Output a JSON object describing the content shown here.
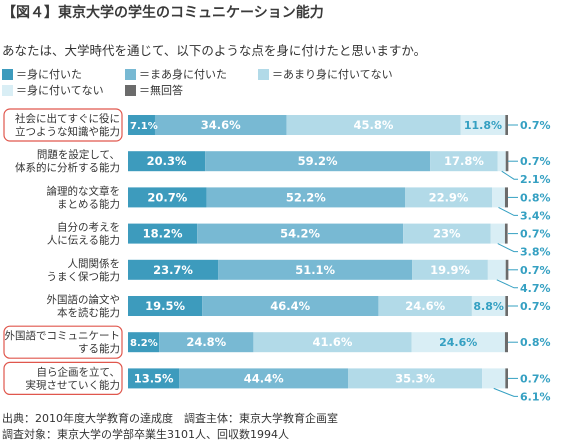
{
  "title": "【図４】東京大学の学生のコミュニケーション能力",
  "question": "あなたは、大学時代を通じて、以下のような点を身に付けたと思いますか。",
  "footer": {
    "line1": "出典：2010年度大学教育の達成度　調査主体：東京大学教育企画室",
    "line2": "調査対象：東京大学の学部卒業生3101人、回収数1994人"
  },
  "chart_data": {
    "type": "bar",
    "orientation": "horizontal",
    "stacked": true,
    "ylim": [
      0,
      100
    ],
    "legend_position": "top",
    "series": [
      {
        "name": "身に付いた",
        "color": "#3d9bbd",
        "label_color": "#ffffff"
      },
      {
        "name": "まあ身に付いた",
        "color": "#78b9d3",
        "label_color": "#ffffff"
      },
      {
        "name": "あまり身に付いてない",
        "color": "#b2dae8",
        "label_color": "#ffffff"
      },
      {
        "name": "身に付いてない",
        "color": "#d9eef5",
        "label_color": "#35a0c2"
      },
      {
        "name": "無回答",
        "color": "#6b6b6b",
        "label_color": "#35a0c2"
      }
    ],
    "categories": [
      {
        "lines": [
          "社会に出てすぐに役に",
          "立つような知識や能力"
        ],
        "highlight": true,
        "values": [
          7.1,
          34.6,
          45.8,
          11.8,
          0.7
        ],
        "labels": [
          "7.1%",
          "34.6%",
          "45.8%",
          "11.8%",
          "0.7%"
        ]
      },
      {
        "lines": [
          "問題を設定して、",
          "体系的に分析する能力"
        ],
        "highlight": false,
        "values": [
          20.3,
          59.2,
          17.8,
          2.1,
          0.7
        ],
        "labels": [
          "20.3%",
          "59.2%",
          "17.8%",
          "2.1%",
          "0.7%"
        ]
      },
      {
        "lines": [
          "論理的な文章を",
          "まとめる能力"
        ],
        "highlight": false,
        "values": [
          20.7,
          52.2,
          22.9,
          3.4,
          0.8
        ],
        "labels": [
          "20.7%",
          "52.2%",
          "22.9%",
          "3.4%",
          "0.8%"
        ]
      },
      {
        "lines": [
          "自分の考えを",
          "人に伝える能力"
        ],
        "highlight": false,
        "values": [
          18.2,
          54.2,
          23,
          3.8,
          0.7
        ],
        "labels": [
          "18.2%",
          "54.2%",
          "23%",
          "3.8%",
          "0.7%"
        ]
      },
      {
        "lines": [
          "人間関係を",
          "うまく保つ能力"
        ],
        "highlight": false,
        "values": [
          23.7,
          51.1,
          19.9,
          4.7,
          0.7
        ],
        "labels": [
          "23.7%",
          "51.1%",
          "19.9%",
          "4.7%",
          "0.7%"
        ]
      },
      {
        "lines": [
          "外国語の論文や",
          "本を読む能力"
        ],
        "highlight": false,
        "values": [
          19.5,
          46.4,
          24.6,
          8.8,
          0.7
        ],
        "labels": [
          "19.5%",
          "46.4%",
          "24.6%",
          "8.8%",
          "0.7%"
        ]
      },
      {
        "lines": [
          "外国語でコミュニケート",
          "する能力"
        ],
        "highlight": true,
        "values": [
          8.2,
          24.8,
          41.6,
          24.6,
          0.8
        ],
        "labels": [
          "8.2%",
          "24.8%",
          "41.6%",
          "24.6%",
          "0.8%"
        ]
      },
      {
        "lines": [
          "自ら企画を立て、",
          "実現させていく能力"
        ],
        "highlight": true,
        "values": [
          13.5,
          44.4,
          35.3,
          6.1,
          0.7
        ],
        "labels": [
          "13.5%",
          "44.4%",
          "35.3%",
          "6.1%",
          "0.7%"
        ]
      }
    ]
  }
}
